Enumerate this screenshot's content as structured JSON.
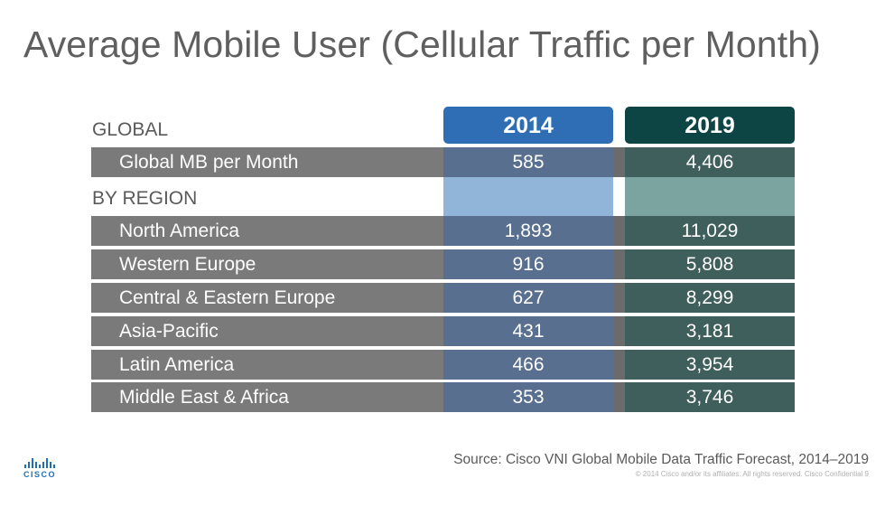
{
  "title": "Average Mobile User (Cellular Traffic per Month)",
  "headers": {
    "col1": "2014",
    "col2": "2019"
  },
  "global": {
    "section_label": "GLOBAL",
    "row": {
      "label": "Global MB per Month",
      "v2014": "585",
      "v2019": "4,406"
    }
  },
  "by_region": {
    "section_label": "BY REGION",
    "rows": [
      {
        "label": "North America",
        "v2014": "1,893",
        "v2019": "11,029"
      },
      {
        "label": "Western Europe",
        "v2014": "916",
        "v2019": "5,808"
      },
      {
        "label": "Central & Eastern Europe",
        "v2014": "627",
        "v2019": "8,299"
      },
      {
        "label": "Asia-Pacific",
        "v2014": "431",
        "v2019": "3,181"
      },
      {
        "label": "Latin America",
        "v2014": "466",
        "v2019": "3,954"
      },
      {
        "label": "Middle East & Africa",
        "v2014": "353",
        "v2019": "3,746"
      }
    ]
  },
  "footer": {
    "source": "Source: Cisco VNI Global Mobile Data Traffic Forecast, 2014–2019",
    "copyright": "© 2014  Cisco and/or its affiliates. All rights reserved.   Cisco Confidential        9",
    "logo_text": "CISCO"
  },
  "colors": {
    "header_2014": "#2f6db5",
    "header_2019": "#0c4544",
    "row_band": "#7a7a7a"
  }
}
